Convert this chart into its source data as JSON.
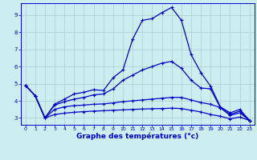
{
  "xlabel": "Graphe des températures (°c)",
  "bg_color": "#cceef0",
  "line_color": "#0000cc",
  "grid_color": "#aacccc",
  "xlim": [
    -0.5,
    23.5
  ],
  "ylim": [
    2.6,
    9.7
  ],
  "xticks": [
    0,
    1,
    2,
    3,
    4,
    5,
    6,
    7,
    8,
    9,
    10,
    11,
    12,
    13,
    14,
    15,
    16,
    17,
    18,
    19,
    20,
    21,
    22,
    23
  ],
  "yticks": [
    3,
    4,
    5,
    6,
    7,
    8,
    9
  ],
  "series": [
    {
      "x": [
        0,
        1,
        2,
        3,
        4,
        5,
        6,
        7,
        8,
        9,
        10,
        11,
        12,
        13,
        14,
        15,
        16,
        17,
        18,
        19,
        20,
        21,
        22,
        23
      ],
      "y": [
        4.9,
        4.3,
        3.0,
        3.8,
        4.1,
        4.4,
        4.5,
        4.65,
        4.6,
        5.35,
        5.8,
        7.6,
        8.7,
        8.8,
        9.15,
        9.45,
        8.7,
        6.7,
        5.65,
        4.85,
        3.65,
        3.3,
        3.5,
        2.85
      ]
    },
    {
      "x": [
        0,
        1,
        2,
        3,
        4,
        5,
        6,
        7,
        8,
        9,
        10,
        11,
        12,
        13,
        14,
        15,
        16,
        17,
        18,
        19,
        20,
        21,
        22,
        23
      ],
      "y": [
        4.9,
        4.3,
        3.0,
        3.75,
        3.95,
        4.1,
        4.2,
        4.35,
        4.4,
        4.7,
        5.2,
        5.5,
        5.8,
        6.0,
        6.2,
        6.3,
        5.9,
        5.2,
        4.75,
        4.7,
        3.6,
        3.2,
        3.4,
        2.85
      ]
    },
    {
      "x": [
        0,
        1,
        2,
        3,
        4,
        5,
        6,
        7,
        8,
        9,
        10,
        11,
        12,
        13,
        14,
        15,
        16,
        17,
        18,
        19,
        20,
        21,
        22,
        23
      ],
      "y": [
        4.9,
        4.3,
        3.0,
        3.5,
        3.65,
        3.72,
        3.75,
        3.8,
        3.82,
        3.88,
        3.95,
        4.0,
        4.05,
        4.1,
        4.15,
        4.2,
        4.2,
        4.05,
        3.9,
        3.8,
        3.6,
        3.15,
        3.3,
        2.85
      ]
    },
    {
      "x": [
        0,
        1,
        2,
        3,
        4,
        5,
        6,
        7,
        8,
        9,
        10,
        11,
        12,
        13,
        14,
        15,
        16,
        17,
        18,
        19,
        20,
        21,
        22,
        23
      ],
      "y": [
        4.9,
        4.3,
        3.0,
        3.2,
        3.28,
        3.33,
        3.37,
        3.4,
        3.42,
        3.45,
        3.47,
        3.5,
        3.52,
        3.54,
        3.55,
        3.57,
        3.55,
        3.45,
        3.35,
        3.2,
        3.1,
        2.95,
        3.05,
        2.85
      ]
    }
  ]
}
